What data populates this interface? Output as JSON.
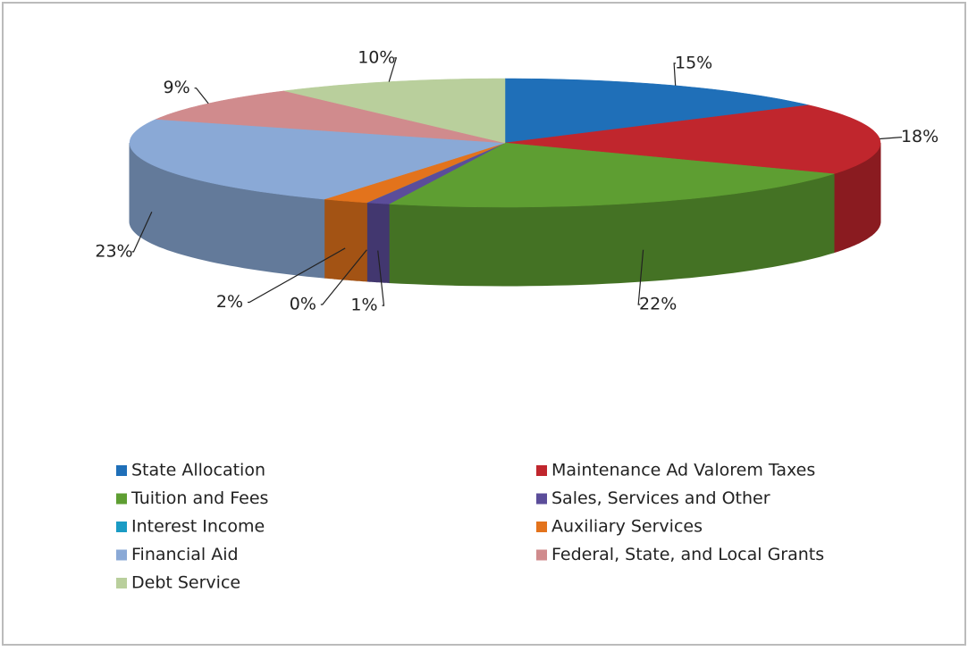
{
  "chart_data": {
    "type": "pie",
    "categories": [
      "State Allocation",
      "Maintenance Ad Valorem Taxes",
      "Tuition and Fees",
      "Sales, Services and Other",
      "Interest Income",
      "Auxiliary Services",
      "Financial Aid",
      "Federal, State, and Local Grants",
      "Debt Service"
    ],
    "values": [
      15,
      18,
      22,
      1,
      0,
      2,
      23,
      9,
      10
    ],
    "value_labels": [
      "15%",
      "18%",
      "22%",
      "1%",
      "0%",
      "2%",
      "23%",
      "9%",
      "10%"
    ],
    "colors": [
      "#1f6fb8",
      "#c0262d",
      "#5e9e32",
      "#5b4d9a",
      "#1a9bc4",
      "#e3731c",
      "#8aa9d6",
      "#d08b8d",
      "#b9cf9c"
    ]
  }
}
